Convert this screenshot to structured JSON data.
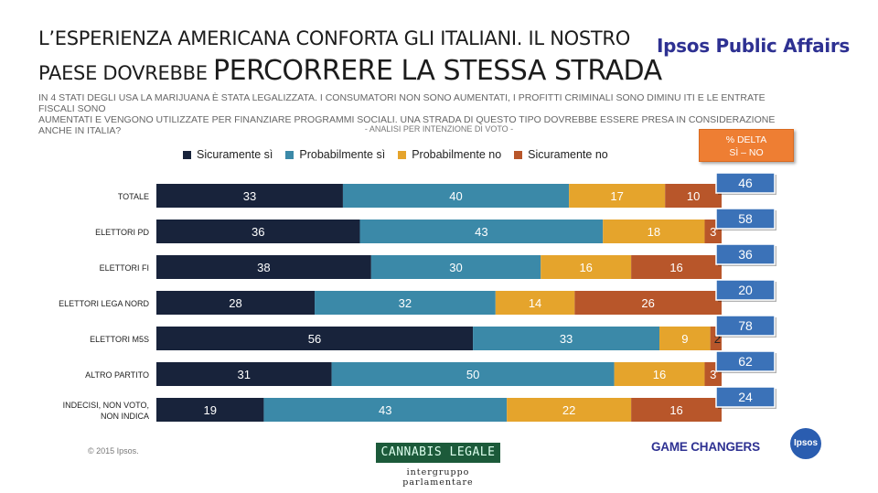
{
  "header": {
    "title_line1": "L’ESPERIENZA AMERICANA CONFORTA GLI ITALIANI. IL NOSTRO",
    "title_line2_prefix": "PAESE DOVREBBE ",
    "title_line2_emphasis": "PERCORRERE LA STESSA STRADA",
    "brand": "Ipsos Public Affairs",
    "subtitle_line1": "IN 4 STATI DEGLI USA LA MARIJUANA È STATA LEGALIZZATA. I CONSUMATORI NON SONO AUMENTATI, I PROFITTI CRIMINALI SONO DIMINU ITI E LE ENTRATE FISCALI SONO",
    "subtitle_line2": "AUMENTATI E VENGONO UTILIZZATE PER FINANZIARE PROGRAMMI SOCIALI. UNA STRADA DI QUESTO TIPO DOVREBBE ESSERE PRESA IN CONSIDERAZIONE ANCHE IN ITALIA?",
    "analysis_note": "- ANALISI PER INTENZIONE DI VOTO -"
  },
  "delta_header": {
    "line1": "% DELTA",
    "line2": "SÌ – NO"
  },
  "colors": {
    "Sicuramente sì": "#18233b",
    "Probabilmente sì": "#3b89a8",
    "Probabilmente no": "#e5a42c",
    "Sicuramente no": "#b8562a",
    "delta_box": "#3b72b8",
    "delta_header": "#ee7e33"
  },
  "chart_data": {
    "type": "bar",
    "orientation": "horizontal-stacked",
    "categories": [
      "TOTALE",
      "ELETTORI  PD",
      "ELETTORI FI",
      "ELETTORI LEGA NORD",
      "ELETTORI M5S",
      "ALTRO PARTITO",
      "INDECISI, NON VOTO, NON INDICA"
    ],
    "category_lines": [
      [
        "TOTALE"
      ],
      [
        "ELETTORI  PD"
      ],
      [
        "ELETTORI FI"
      ],
      [
        "ELETTORI LEGA NORD"
      ],
      [
        "ELETTORI M5S"
      ],
      [
        "ALTRO PARTITO"
      ],
      [
        "INDECISI, NON VOTO,",
        "NON INDICA"
      ]
    ],
    "series": [
      {
        "name": "Sicuramente sì",
        "values": [
          33,
          36,
          38,
          28,
          56,
          31,
          19
        ]
      },
      {
        "name": "Probabilmente sì",
        "values": [
          40,
          43,
          30,
          32,
          33,
          50,
          43
        ]
      },
      {
        "name": "Probabilmente no",
        "values": [
          17,
          18,
          16,
          14,
          9,
          16,
          22
        ]
      },
      {
        "name": "Sicuramente no",
        "values": [
          10,
          3,
          16,
          26,
          2,
          3,
          16
        ]
      }
    ],
    "delta": [
      46,
      58,
      36,
      20,
      78,
      62,
      24
    ],
    "xlim": [
      0,
      100
    ],
    "legend": "top",
    "grid": false
  },
  "footer": {
    "copyright": "© 2015 Ipsos.",
    "cannabis_logo": "CANNABIS LEGALE",
    "cannabis_sub": "intergruppo parlamentare",
    "tagline": "GAME CHANGERS",
    "ipsos_logo": "Ipsos"
  }
}
